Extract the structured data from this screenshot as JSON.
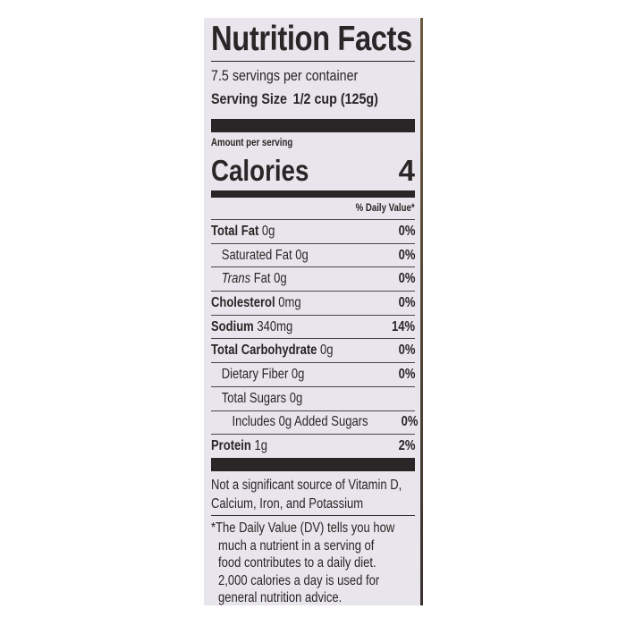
{
  "title": "Nutrition Facts",
  "servings_per_container": "7.5 servings per container",
  "serving_size": {
    "label": "Serving Size",
    "value": "1/2 cup (125g)"
  },
  "amount_per_serving": "Amount per serving",
  "calories": {
    "label": "Calories",
    "value": "4"
  },
  "daily_value_header": "% Daily Value*",
  "rows": [
    {
      "name": "Total Fat",
      "amount": "0g",
      "dv": "0%",
      "bold": true,
      "indent": 0
    },
    {
      "name": "Saturated Fat",
      "amount": "0g",
      "dv": "0%",
      "bold": false,
      "indent": 1
    },
    {
      "italic": "Trans",
      "name": "Fat",
      "amount": "0g",
      "dv": "0%",
      "bold": false,
      "indent": 1
    },
    {
      "name": "Cholesterol",
      "amount": "0mg",
      "dv": "0%",
      "bold": true,
      "indent": 0
    },
    {
      "name": "Sodium",
      "amount": "340mg",
      "dv": "14%",
      "bold": true,
      "indent": 0
    },
    {
      "name": "Total Carbohydrate",
      "amount": "0g",
      "dv": "0%",
      "bold": true,
      "indent": 0
    },
    {
      "name": "Dietary Fiber",
      "amount": "0g",
      "dv": "0%",
      "bold": false,
      "indent": 1
    },
    {
      "name": "Total Sugars",
      "amount": "0g",
      "dv": "",
      "bold": false,
      "indent": 1
    },
    {
      "name": "Includes 0g Added Sugars",
      "amount": "",
      "dv": "0%",
      "bold": false,
      "indent": 2
    },
    {
      "name": "Protein",
      "amount": "1g",
      "dv": "2%",
      "bold": true,
      "indent": 0
    }
  ],
  "not_significant": [
    "Not a significant source of Vitamin D,",
    "Calcium, Iron, and Potassium"
  ],
  "footnote": [
    "*The Daily Value (DV) tells you how",
    "much a nutrient in a serving of",
    "food contributes to a daily diet.",
    "2,000 calories a day is used for",
    "general nutrition advice."
  ]
}
